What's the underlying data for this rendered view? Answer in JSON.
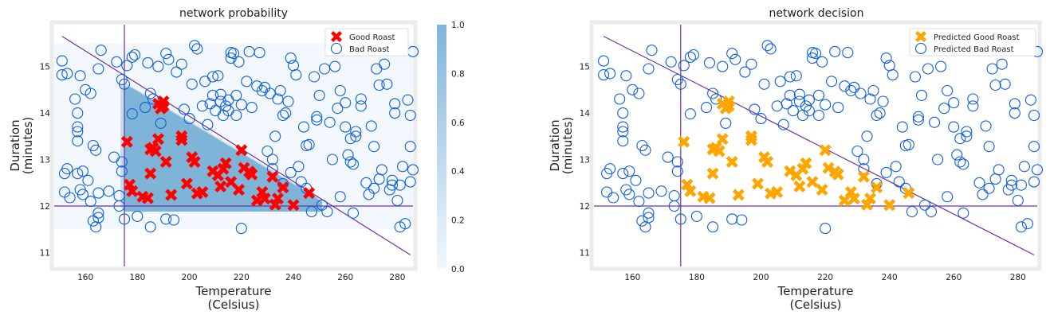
{
  "chart_data": [
    {
      "type": "scatter",
      "title": "network probability",
      "xlabel": "Temperature\n(Celsius)",
      "ylabel": "Duration\n(minutes)",
      "xlim": [
        148,
        286
      ],
      "ylim": [
        10.7,
        15.9
      ],
      "xticks": [
        160,
        180,
        200,
        220,
        240,
        260,
        280
      ],
      "yticks": [
        11,
        12,
        13,
        14,
        15
      ],
      "legend": {
        "placement": "top-right",
        "entries": [
          "Good Roast",
          "Bad Roast"
        ]
      },
      "colorbar": {
        "ticks": [
          "0.0",
          "0.2",
          "0.4",
          "0.6",
          "0.8",
          "1.0"
        ],
        "range": [
          0,
          1
        ]
      },
      "heatmap": {
        "x": [
          148,
          286
        ],
        "y": [
          11.5,
          15.5
        ],
        "high_region": "triangle above y=12, right of x=175, below the diagonal"
      },
      "decision_lines": {
        "vertical_x": 175,
        "horizontal_y": 12,
        "diagonal": [
          [
            151,
            15.65
          ],
          [
            285,
            10.95
          ]
        ]
      },
      "series": [
        {
          "name": "Good Roast",
          "marker": "X",
          "color": "#ff0000",
          "points": [
            [
              176,
              13.38
            ],
            [
              177,
              12.46
            ],
            [
              178,
              12.32
            ],
            [
              182,
              12.2
            ],
            [
              184,
              12.17
            ],
            [
              185,
              13.22
            ],
            [
              185,
              12.7
            ],
            [
              186,
              13.25
            ],
            [
              187,
              13.18
            ],
            [
              188,
              13.44
            ],
            [
              188,
              14.2
            ],
            [
              189,
              14.1
            ],
            [
              190,
              14.15
            ],
            [
              190,
              14.25
            ],
            [
              191,
              12.95
            ],
            [
              193,
              12.24
            ],
            [
              197,
              13.5
            ],
            [
              197,
              13.42
            ],
            [
              199,
              12.48
            ],
            [
              201,
              13.05
            ],
            [
              202,
              12.95
            ],
            [
              203,
              12.27
            ],
            [
              205,
              12.3
            ],
            [
              209,
              12.75
            ],
            [
              211,
              12.66
            ],
            [
              212,
              12.42
            ],
            [
              213,
              12.8
            ],
            [
              214,
              12.92
            ],
            [
              216,
              12.52
            ],
            [
              219,
              12.35
            ],
            [
              220,
              13.2
            ],
            [
              221,
              12.82
            ],
            [
              223,
              12.74
            ],
            [
              224,
              12.68
            ],
            [
              226,
              12.12
            ],
            [
              228,
              12.3
            ],
            [
              229,
              12.16
            ],
            [
              232,
              12.63
            ],
            [
              233,
              12.03
            ],
            [
              234,
              12.16
            ],
            [
              236,
              12.4
            ],
            [
              240,
              12.02
            ],
            [
              246,
              12.28
            ]
          ]
        },
        {
          "name": "Bad Roast",
          "marker": "o",
          "color": "#0c5ede",
          "points": [
            [
              151,
              14.82
            ],
            [
              151,
              15.12
            ],
            [
              152,
              12.3
            ],
            [
              152,
              12.7
            ],
            [
              153,
              12.8
            ],
            [
              153,
              14.85
            ],
            [
              154,
              12.18
            ],
            [
              156,
              14.3
            ],
            [
              157,
              13.6
            ],
            [
              157,
              13.7
            ],
            [
              157,
              13.4
            ],
            [
              157,
              12.7
            ],
            [
              157,
              14.0
            ],
            [
              158,
              12.35
            ],
            [
              158,
              14.8
            ],
            [
              159,
              12.75
            ],
            [
              159,
              12.25
            ],
            [
              160,
              14.5
            ],
            [
              161,
              12.55
            ],
            [
              162,
              14.42
            ],
            [
              162,
              12.1
            ],
            [
              163,
              13.3
            ],
            [
              163,
              11.68
            ],
            [
              164,
              13.2
            ],
            [
              164,
              11.55
            ],
            [
              165,
              14.95
            ],
            [
              165,
              11.85
            ],
            [
              165,
              11.75
            ],
            [
              165,
              12.28
            ],
            [
              166,
              15.35
            ],
            [
              169,
              12.32
            ],
            [
              171,
              13.05
            ],
            [
              172,
              15.1
            ],
            [
              173,
              12.0
            ],
            [
              173,
              12.22
            ],
            [
              174,
              12.95
            ],
            [
              174,
              12.75
            ],
            [
              174,
              14.72
            ],
            [
              175,
              11.72
            ],
            [
              175,
              14.62
            ],
            [
              176,
              15.02
            ],
            [
              178,
              15.2
            ],
            [
              178,
              13.98
            ],
            [
              179,
              15.25
            ],
            [
              180,
              11.78
            ],
            [
              183,
              14.12
            ],
            [
              184,
              15.08
            ],
            [
              185,
              14.42
            ],
            [
              185,
              11.55
            ],
            [
              186,
              14.3
            ],
            [
              188,
              15.0
            ],
            [
              189,
              13.78
            ],
            [
              191,
              15.28
            ],
            [
              191,
              11.72
            ],
            [
              192,
              15.15
            ],
            [
              194,
              11.7
            ],
            [
              195,
              14.88
            ],
            [
              197,
              15.05
            ],
            [
              198,
              14.08
            ],
            [
              200,
              13.88
            ],
            [
              201,
              14.62
            ],
            [
              202,
              15.45
            ],
            [
              203,
              15.38
            ],
            [
              205,
              14.15
            ],
            [
              206,
              14.68
            ],
            [
              207,
              13.75
            ],
            [
              208,
              14.2
            ],
            [
              209,
              14.38
            ],
            [
              209,
              14.78
            ],
            [
              210,
              14.05
            ],
            [
              211,
              14.8
            ],
            [
              212,
              14.4
            ],
            [
              212,
              14.25
            ],
            [
              213,
              13.95
            ],
            [
              214,
              14.15
            ],
            [
              215,
              14.28
            ],
            [
              215,
              14.05
            ],
            [
              216,
              15.3
            ],
            [
              216,
              15.18
            ],
            [
              217,
              15.28
            ],
            [
              218,
              14.38
            ],
            [
              218,
              13.95
            ],
            [
              219,
              15.1
            ],
            [
              220,
              14.18
            ],
            [
              220,
              11.52
            ],
            [
              222,
              14.68
            ],
            [
              223,
              15.32
            ],
            [
              224,
              14.12
            ],
            [
              226,
              14.58
            ],
            [
              227,
              15.3
            ],
            [
              228,
              14.48
            ],
            [
              229,
              14.55
            ],
            [
              230,
              13.18
            ],
            [
              231,
              14.42
            ],
            [
              232,
              13.0
            ],
            [
              232,
              12.8
            ],
            [
              233,
              13.5
            ],
            [
              234,
              14.3
            ],
            [
              235,
              14.48
            ],
            [
              236,
              13.95
            ],
            [
              236,
              12.48
            ],
            [
              237,
              14.0
            ],
            [
              238,
              14.25
            ],
            [
              239,
              15.18
            ],
            [
              239,
              12.72
            ],
            [
              240,
              15.02
            ],
            [
              241,
              14.82
            ],
            [
              242,
              12.85
            ],
            [
              243,
              12.52
            ],
            [
              244,
              13.7
            ],
            [
              245,
              13.3
            ],
            [
              245,
              12.38
            ],
            [
              246,
              13.32
            ],
            [
              247,
              11.88
            ],
            [
              248,
              14.78
            ],
            [
              249,
              13.92
            ],
            [
              249,
              13.85
            ],
            [
              250,
              14.38
            ],
            [
              251,
              12.02
            ],
            [
              252,
              14.95
            ],
            [
              253,
              11.88
            ],
            [
              254,
              13.8
            ],
            [
              255,
              13.0
            ],
            [
              256,
              15.0
            ],
            [
              257,
              14.1
            ],
            [
              258,
              14.48
            ],
            [
              258,
              12.2
            ],
            [
              260,
              14.22
            ],
            [
              260,
              13.7
            ],
            [
              261,
              13.1
            ],
            [
              262,
              13.45
            ],
            [
              262,
              12.95
            ],
            [
              263,
              12.9
            ],
            [
              263,
              11.85
            ],
            [
              264,
              13.5
            ],
            [
              264,
              13.6
            ],
            [
              266,
              14.3
            ],
            [
              266,
              14.15
            ],
            [
              268,
              12.5
            ],
            [
              269,
              12.25
            ],
            [
              270,
              13.72
            ],
            [
              271,
              13.28
            ],
            [
              271,
              12.38
            ],
            [
              272,
              14.95
            ],
            [
              273,
              14.6
            ],
            [
              273,
              12.58
            ],
            [
              274,
              12.78
            ],
            [
              275,
              15.05
            ],
            [
              276,
              14.62
            ],
            [
              277,
              12.35
            ],
            [
              278,
              12.55
            ],
            [
              278,
              12.45
            ],
            [
              279,
              14.0
            ],
            [
              279,
              14.2
            ],
            [
              280,
              12.12
            ],
            [
              281,
              12.45
            ],
            [
              281,
              11.55
            ],
            [
              282,
              12.85
            ],
            [
              283,
              11.62
            ],
            [
              284,
              14.28
            ],
            [
              285,
              13.95
            ],
            [
              285,
              13.28
            ],
            [
              285,
              12.52
            ],
            [
              286,
              12.78
            ],
            [
              286,
              15.32
            ]
          ]
        }
      ]
    },
    {
      "type": "scatter",
      "title": "network decision",
      "xlabel": "Temperature\n(Celsius)",
      "ylabel": "Duration\n(minutes)",
      "xlim": [
        148,
        286
      ],
      "ylim": [
        10.7,
        15.9
      ],
      "xticks": [
        160,
        180,
        200,
        220,
        240,
        260,
        280
      ],
      "yticks": [
        11,
        12,
        13,
        14,
        15
      ],
      "legend": {
        "placement": "top-right",
        "entries": [
          "Predicted Good Roast",
          "Predicted Bad Roast"
        ]
      },
      "decision_lines": {
        "vertical_x": 175,
        "horizontal_y": 12,
        "diagonal": [
          [
            151,
            15.65
          ],
          [
            285,
            10.95
          ]
        ]
      },
      "series": [
        {
          "name": "Predicted Good Roast",
          "marker": "X",
          "color": "#ffa500",
          "same_points_as": "Good Roast"
        },
        {
          "name": "Predicted Bad Roast",
          "marker": "o",
          "color": "#0c5ede",
          "same_points_as": "Bad Roast"
        }
      ]
    }
  ],
  "style": {
    "frame_color": "#ebebeb",
    "line_color": "#7030a0",
    "heat_low": "#f2f8fd",
    "heat_high": "#7fb4d9"
  }
}
